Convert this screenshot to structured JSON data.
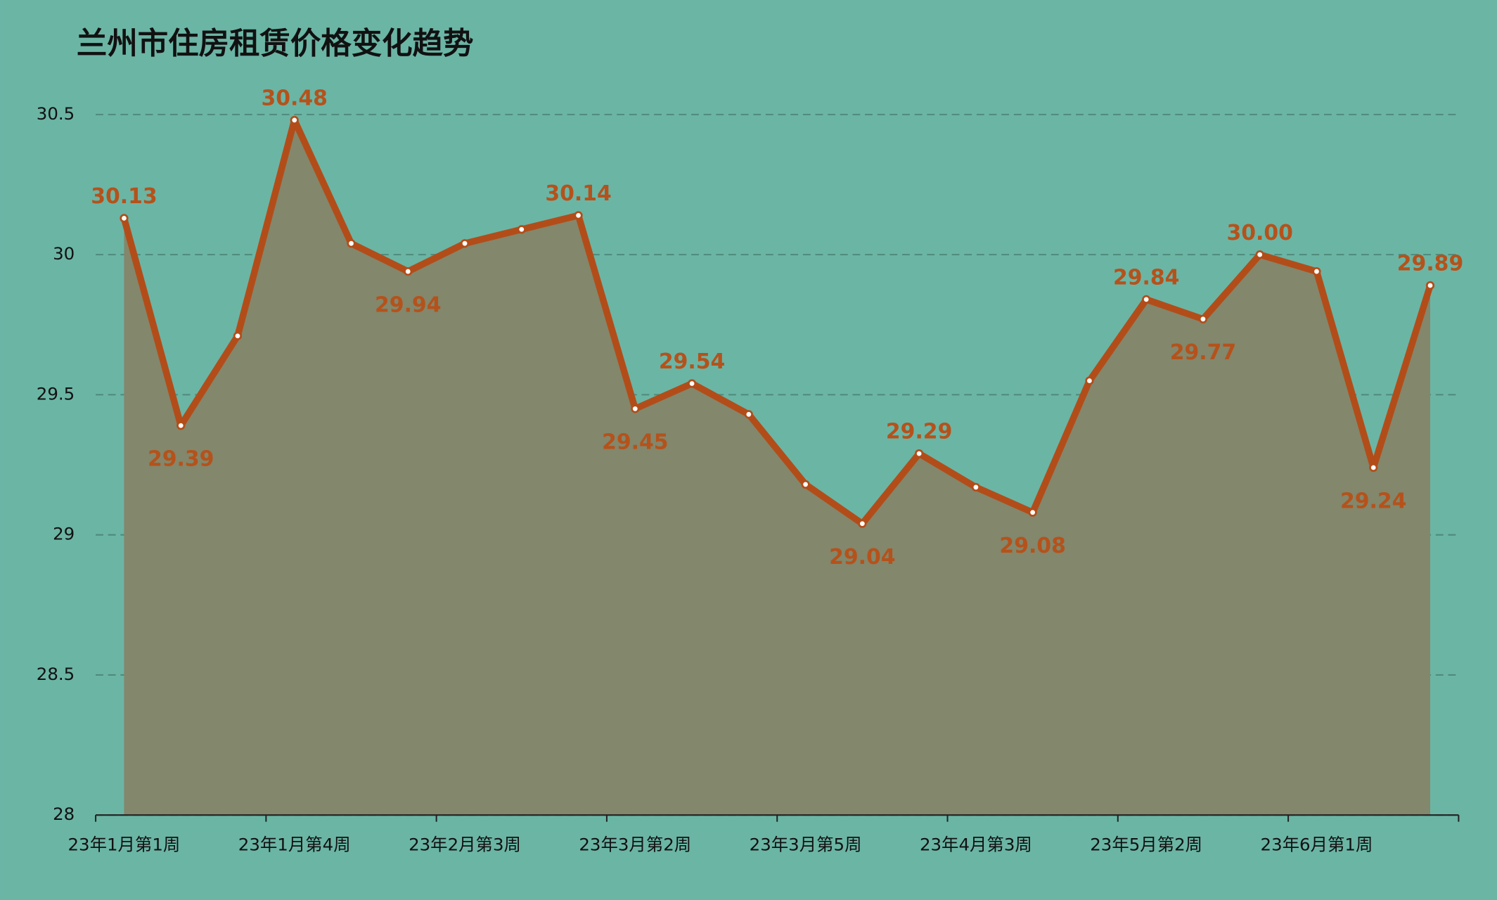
{
  "chart_data": {
    "type": "line",
    "title": "兰州市住房租赁价格变化趋势",
    "categories": [
      "23年1月第1周",
      null,
      null,
      "23年1月第4周",
      null,
      null,
      "23年2月第3周",
      null,
      null,
      "23年3月第2周",
      null,
      null,
      "23年3月第5周",
      null,
      null,
      "23年4月第3周",
      null,
      null,
      "23年5月第2周",
      null,
      null,
      "23年6月第1周",
      null,
      null
    ],
    "values": [
      30.13,
      29.39,
      29.71,
      30.48,
      30.04,
      29.94,
      30.04,
      30.09,
      30.14,
      29.45,
      29.54,
      29.43,
      29.18,
      29.04,
      29.29,
      29.17,
      29.08,
      29.55,
      29.84,
      29.77,
      30.0,
      29.94,
      29.24,
      29.89
    ],
    "value_labels": [
      "30.13",
      "29.39",
      null,
      "30.48",
      null,
      "29.94",
      null,
      null,
      "30.14",
      "29.45",
      "29.54",
      null,
      null,
      "29.04",
      "29.29",
      null,
      "29.08",
      null,
      "29.84",
      "29.77",
      "30.00",
      null,
      "29.24",
      "29.89"
    ],
    "color": "#b24d19",
    "area_color": "#83876b",
    "background": "#6bb5a5",
    "ylim": [
      28,
      30.5
    ],
    "yticks": [
      28,
      28.5,
      29,
      29.5,
      30,
      30.5
    ],
    "grid": true
  }
}
